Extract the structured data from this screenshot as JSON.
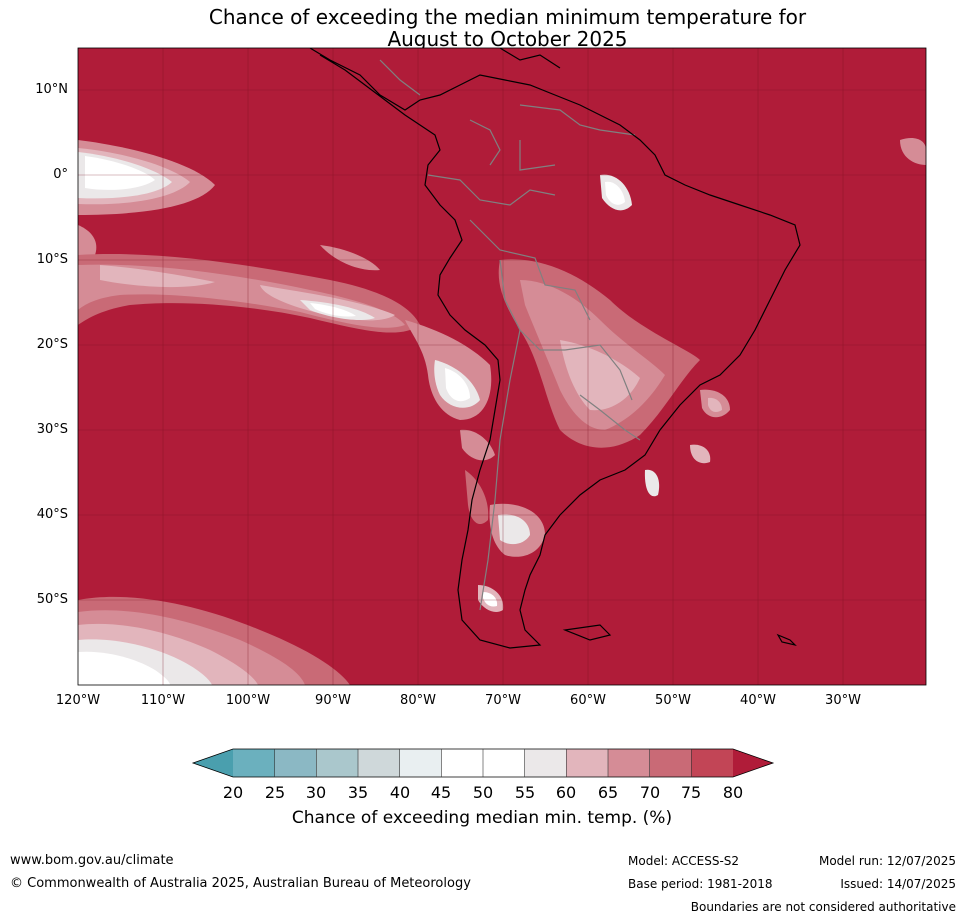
{
  "title": {
    "line1": "Chance of exceeding the median minimum temperature for",
    "line2": "August to October 2025"
  },
  "axes": {
    "lat_labels": [
      "10°N",
      "0°",
      "10°S",
      "20°S",
      "30°S",
      "40°S",
      "50°S"
    ],
    "lon_labels": [
      "120°W",
      "110°W",
      "100°W",
      "90°W",
      "80°W",
      "70°W",
      "60°W",
      "50°W",
      "40°W",
      "30°W"
    ]
  },
  "colorbar": {
    "title": "Chance of exceeding median min. temp. (%)",
    "ticks": [
      "20",
      "25",
      "30",
      "35",
      "40",
      "45",
      "50",
      "55",
      "60",
      "65",
      "70",
      "75",
      "80"
    ],
    "colors": [
      "#4a9fae",
      "#6bb0be",
      "#8bb8c4",
      "#aac7cc",
      "#cfd8da",
      "#e9eff1",
      "#ffffff",
      "#ffffff",
      "#ebe8e9",
      "#e2b5bc",
      "#d58c96",
      "#c96a76",
      "#c24556",
      "#b01c39"
    ],
    "map_fill": "#b01c39"
  },
  "footer": {
    "website": "www.bom.gov.au/climate",
    "copyright": "© Commonwealth of Australia 2025, Australian Bureau of Meteorology",
    "model": "Model: ACCESS-S2",
    "base_period": "Base period: 1981-2018",
    "model_run": "Model run: 12/07/2025",
    "issued": "Issued: 14/07/2025",
    "disclaimer": "Boundaries are not considered authoritative"
  }
}
